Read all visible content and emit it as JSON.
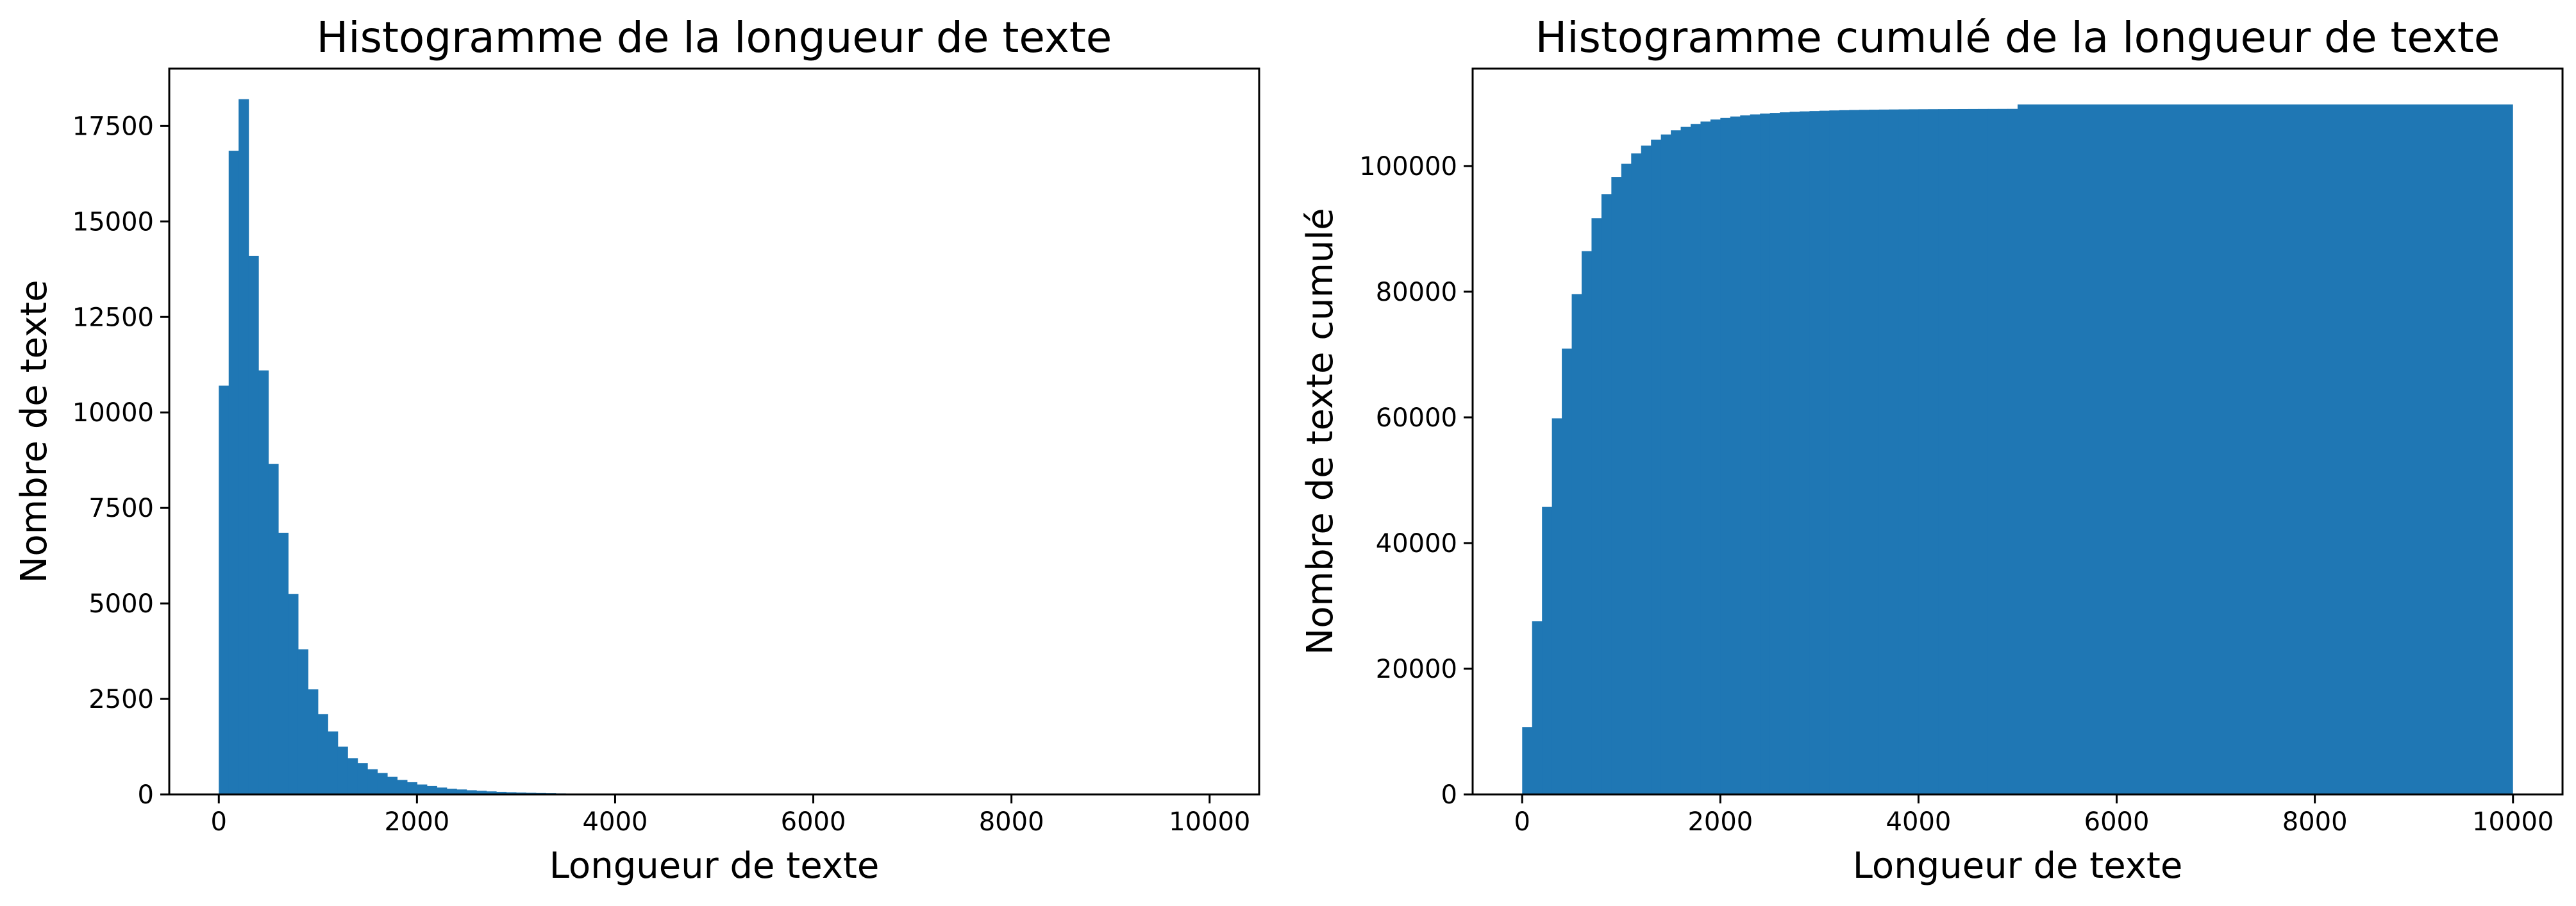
{
  "chart_data": [
    {
      "type": "histogram",
      "title": "Histogramme de la longueur de texte",
      "xlabel": "Longueur de texte",
      "ylabel": "Nombre de texte",
      "xlim": [
        -500,
        10500
      ],
      "ylim": [
        0,
        19000
      ],
      "xticks": [
        "0",
        "2000",
        "4000",
        "6000",
        "8000",
        "10000"
      ],
      "yticks": [
        "0",
        "2500",
        "5000",
        "7500",
        "10000",
        "12500",
        "15000",
        "17500"
      ],
      "bin_width": 100,
      "bin_start": 0,
      "values": [
        10700,
        16850,
        18200,
        14100,
        11100,
        8650,
        6850,
        5250,
        3800,
        2750,
        2100,
        1650,
        1250,
        950,
        820,
        660,
        560,
        460,
        380,
        320,
        260,
        220,
        180,
        150,
        130,
        110,
        95,
        80,
        68,
        58,
        50,
        43,
        37,
        32,
        27,
        23,
        20,
        17,
        15,
        13,
        11,
        10,
        9,
        8,
        7,
        6,
        5,
        5,
        4,
        4
      ],
      "color": "#1f77b4",
      "grid": false,
      "legend": "none"
    },
    {
      "type": "histogram",
      "title": "Histogramme cumulé de la longueur de texte",
      "xlabel": "Longueur de texte",
      "ylabel": "Nombre de texte cumulé",
      "xlim": [
        -500,
        10500
      ],
      "ylim": [
        0,
        115500
      ],
      "xticks": [
        "0",
        "2000",
        "4000",
        "6000",
        "8000",
        "10000"
      ],
      "yticks": [
        "0",
        "20000",
        "40000",
        "60000",
        "80000",
        "100000"
      ],
      "bin_width": 100,
      "bin_start": 0,
      "cumulative_values": [
        10700,
        27550,
        45750,
        59850,
        70950,
        79600,
        86450,
        91700,
        95500,
        98250,
        100350,
        102000,
        103250,
        104200,
        105020,
        105680,
        106240,
        106700,
        107080,
        107400,
        107660,
        107880,
        108060,
        108210,
        108340,
        108450,
        108545,
        108625,
        108693,
        108751,
        108801,
        108844,
        108881,
        108913,
        108940,
        108963,
        108983,
        109000,
        109015,
        109028,
        109039,
        109049,
        109058,
        109066,
        109073,
        109079,
        109084,
        109089,
        109093,
        109097
      ],
      "plateau_value": 109800,
      "color": "#1f77b4",
      "grid": false,
      "legend": "none"
    }
  ]
}
